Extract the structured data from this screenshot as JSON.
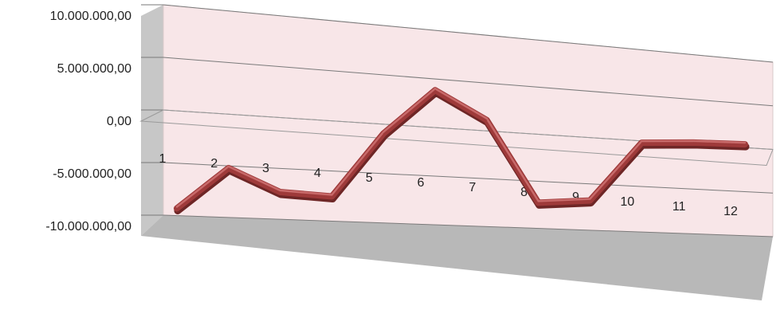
{
  "chart_data": {
    "type": "line",
    "style": "3d",
    "categories": [
      "1",
      "2",
      "3",
      "4",
      "5",
      "6",
      "7",
      "8",
      "9",
      "10",
      "11",
      "12"
    ],
    "series": [
      {
        "values": [
          -8700000,
          -4600000,
          -6700000,
          -6900000,
          -300000,
          4500000,
          1800000,
          -6600000,
          -6100000,
          500000,
          900000,
          1100000
        ]
      }
    ],
    "yticks": [
      "10.000.000,00",
      "5.000.000,00",
      "0,00",
      "-5.000.000,00",
      "-10.000.000,00"
    ],
    "ylim": [
      -10000000,
      10000000
    ],
    "grid": true,
    "legend": "none",
    "colors": {
      "line": "#9e3a3a",
      "line_highlight": "#c86a6a",
      "back_wall": "#f8e6e8",
      "side_wall": "#c7c7c7",
      "floor": "#b8b8b8",
      "gridline": "#7a7a7a"
    }
  }
}
